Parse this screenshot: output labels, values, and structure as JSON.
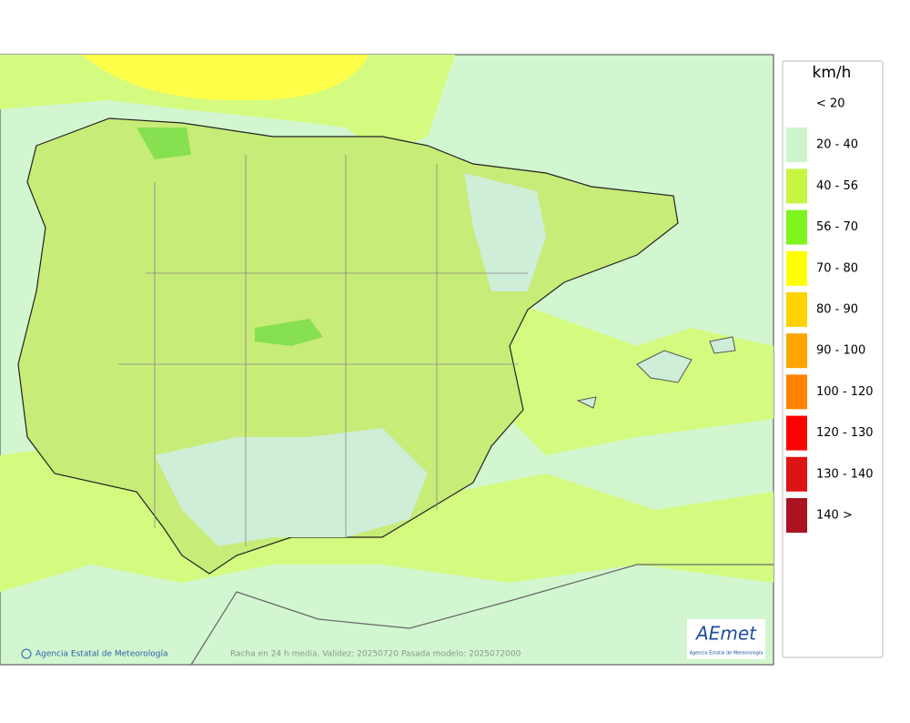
{
  "legend": {
    "title": "km/h",
    "items": [
      {
        "label": "< 20",
        "color": "#ffffff"
      },
      {
        "label": "20 - 40",
        "color": "#ccf5cc"
      },
      {
        "label": "40 - 56",
        "color": "#c6f542"
      },
      {
        "label": "56 - 70",
        "color": "#7ef51e"
      },
      {
        "label": "70 - 80",
        "color": "#ffff00"
      },
      {
        "label": "80 - 90",
        "color": "#ffd200"
      },
      {
        "label": "90 - 100",
        "color": "#ffa500"
      },
      {
        "label": "100 - 120",
        "color": "#ff8200"
      },
      {
        "label": "120 - 130",
        "color": "#ff0000"
      },
      {
        "label": "130 - 140",
        "color": "#dc1414"
      },
      {
        "label": "140 >",
        "color": "#aa1420"
      }
    ]
  },
  "footer": {
    "credit": "Agencia Estatal de Meteorología",
    "caption": "Racha en 24 h media. Validez: 20250720 Pasada modelo: 2025072000"
  },
  "logo": {
    "name": "AEmet",
    "subtitle": "Agencia Estatal de Meteorología"
  }
}
